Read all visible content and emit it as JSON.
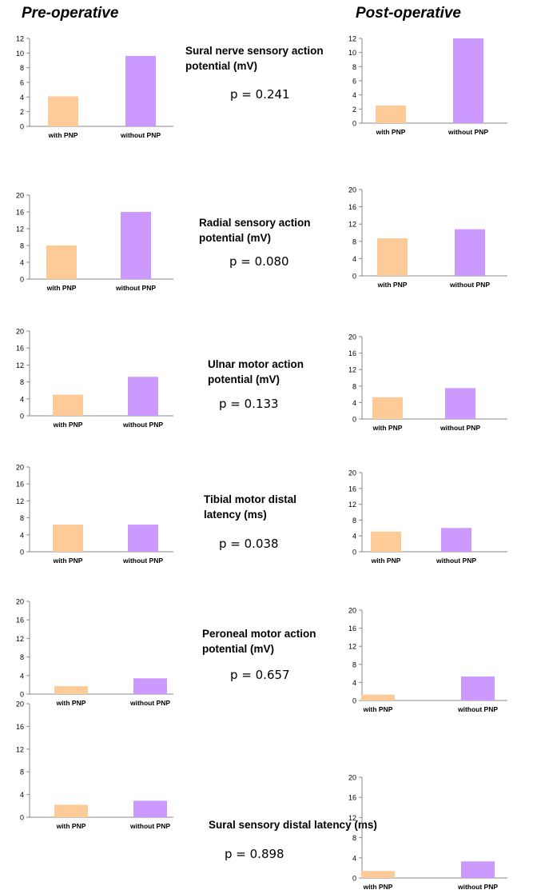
{
  "headings": {
    "pre": "Pre-operative",
    "post": "Post-operative"
  },
  "colors": {
    "with_pnp": "#fdcb98",
    "without_pnp": "#cc99ff",
    "axis": "#888888"
  },
  "categories": [
    "with PNP",
    "without PNP"
  ],
  "measures": [
    {
      "title": "Sural nerve sensory action potential (mV)",
      "p": "p = 0.241"
    },
    {
      "title": "Radial sensory action potential (mV)",
      "p": "p = 0.080"
    },
    {
      "title": "Ulnar motor action potential (mV)",
      "p": "p = 0.133"
    },
    {
      "title": "Tibial motor distal latency (ms)",
      "p": "p = 0.038"
    },
    {
      "title": "Peroneal motor action potential (mV)",
      "p": "p = 0.657"
    },
    {
      "title": "Sural sensory distal latency (ms)",
      "p": "p = 0.898"
    }
  ],
  "chart_data": [
    {
      "type": "bar",
      "panel": "Pre-operative",
      "categories": [
        "with PNP",
        "without PNP"
      ],
      "values": [
        4.1,
        9.6
      ],
      "ylim": [
        0,
        12
      ],
      "yticks": [
        0,
        2,
        4,
        6,
        8,
        10,
        12
      ]
    },
    {
      "type": "bar",
      "panel": "Post-operative",
      "categories": [
        "with PNP",
        "without PNP"
      ],
      "values": [
        2.5,
        12.0
      ],
      "ylim": [
        0,
        12
      ],
      "yticks": [
        0,
        2,
        4,
        6,
        8,
        10,
        12
      ]
    },
    {
      "type": "bar",
      "panel": "Pre-operative",
      "categories": [
        "with PNP",
        "without PNP"
      ],
      "values": [
        8.0,
        16.0
      ],
      "ylim": [
        0,
        20
      ],
      "yticks": [
        0,
        4,
        8,
        12,
        16,
        20
      ]
    },
    {
      "type": "bar",
      "panel": "Post-operative",
      "categories": [
        "with PNP",
        "without PNP"
      ],
      "values": [
        8.7,
        10.8
      ],
      "ylim": [
        0,
        20
      ],
      "yticks": [
        0,
        4,
        8,
        12,
        16,
        20
      ]
    },
    {
      "type": "bar",
      "panel": "Pre-operative",
      "categories": [
        "with PNP",
        "without PNP"
      ],
      "values": [
        5.0,
        9.2
      ],
      "ylim": [
        0,
        20
      ],
      "yticks": [
        0,
        4,
        8,
        12,
        16,
        20
      ]
    },
    {
      "type": "bar",
      "panel": "Post-operative",
      "categories": [
        "with PNP",
        "without PNP"
      ],
      "values": [
        5.3,
        7.5
      ],
      "ylim": [
        0,
        20
      ],
      "yticks": [
        0,
        4,
        8,
        12,
        16,
        20
      ]
    },
    {
      "type": "bar",
      "panel": "Pre-operative",
      "categories": [
        "with PNP",
        "without PNP"
      ],
      "values": [
        6.4,
        6.4
      ],
      "ylim": [
        0,
        20
      ],
      "yticks": [
        0,
        4,
        8,
        12,
        16,
        20
      ]
    },
    {
      "type": "bar",
      "panel": "Post-operative",
      "categories": [
        "with PNP",
        "without PNP"
      ],
      "values": [
        5.1,
        6.0
      ],
      "ylim": [
        0,
        20
      ],
      "yticks": [
        0,
        4,
        8,
        12,
        16,
        20
      ]
    },
    {
      "type": "bar",
      "panel": "Pre-operative",
      "categories": [
        "with PNP",
        "without PNP"
      ],
      "values": [
        1.7,
        3.4
      ],
      "ylim": [
        0,
        20
      ],
      "yticks": [
        0,
        4,
        8,
        12,
        16,
        20
      ]
    },
    {
      "type": "bar",
      "panel": "Post-operative",
      "categories": [
        "with PNP",
        "without PNP"
      ],
      "values": [
        1.3,
        5.3
      ],
      "ylim": [
        0,
        20
      ],
      "yticks": [
        0,
        4,
        8,
        12,
        16,
        20
      ]
    },
    {
      "type": "bar",
      "panel": "Pre-operative",
      "categories": [
        "with PNP",
        "without PNP"
      ],
      "values": [
        2.2,
        2.9
      ],
      "ylim": [
        0,
        20
      ],
      "yticks": [
        0,
        4,
        8,
        12,
        16,
        20
      ]
    },
    {
      "type": "bar",
      "panel": "Post-operative",
      "categories": [
        "with PNP",
        "without PNP"
      ],
      "values": [
        1.4,
        3.3
      ],
      "ylim": [
        0,
        20
      ],
      "yticks": [
        0,
        4,
        8,
        12,
        16,
        20
      ]
    }
  ]
}
